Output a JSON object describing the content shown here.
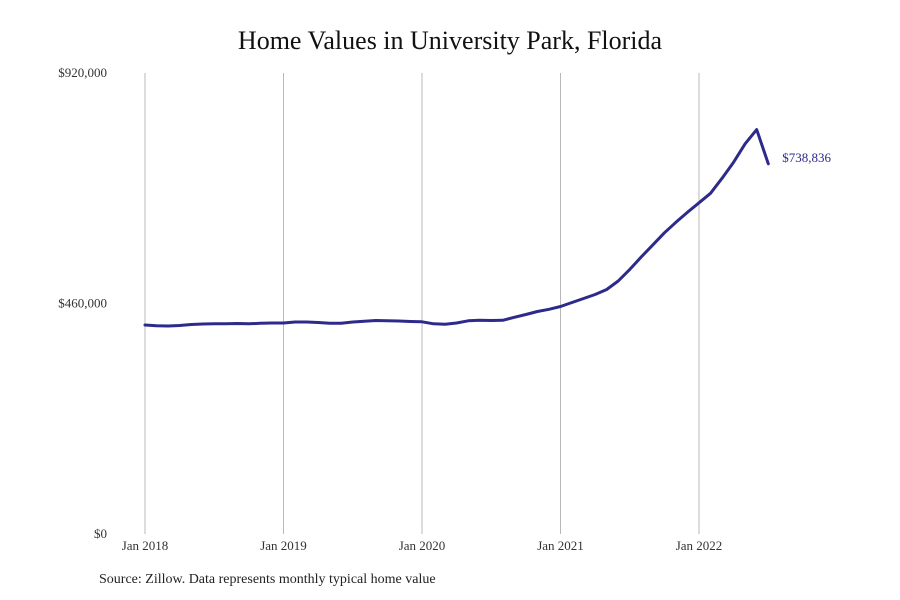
{
  "chart_data": {
    "type": "line",
    "title": "Home Values in University Park, Florida",
    "source_note": "Source: Zillow. Data represents monthly typical home value",
    "ylim": [
      0,
      920000
    ],
    "y_ticks": [
      {
        "value": 0,
        "label": "$0"
      },
      {
        "value": 460000,
        "label": "$460,000"
      },
      {
        "value": 920000,
        "label": "$920,000"
      }
    ],
    "x_ticks": [
      {
        "value": "2018-01",
        "label": "Jan 2018"
      },
      {
        "value": "2019-01",
        "label": "Jan 2019"
      },
      {
        "value": "2020-01",
        "label": "Jan 2020"
      },
      {
        "value": "2021-01",
        "label": "Jan 2021"
      },
      {
        "value": "2022-01",
        "label": "Jan 2022"
      }
    ],
    "grid": "vertical lines at year ticks",
    "line_color": "#2e2a8c",
    "end_label": "$738,836",
    "series": [
      {
        "x": [
          "2018-01",
          "2018-02",
          "2018-03",
          "2018-04",
          "2018-05",
          "2018-06",
          "2018-07",
          "2018-08",
          "2018-09",
          "2018-10",
          "2018-11",
          "2018-12",
          "2019-01",
          "2019-02",
          "2019-03",
          "2019-04",
          "2019-05",
          "2019-06",
          "2019-07",
          "2019-08",
          "2019-09",
          "2019-10",
          "2019-11",
          "2019-12",
          "2020-01",
          "2020-02",
          "2020-03",
          "2020-04",
          "2020-05",
          "2020-06",
          "2020-07",
          "2020-08",
          "2020-09",
          "2020-10",
          "2020-11",
          "2020-12",
          "2021-01",
          "2021-02",
          "2021-03",
          "2021-04",
          "2021-05",
          "2021-06",
          "2021-07",
          "2021-08",
          "2021-09",
          "2021-10",
          "2021-11",
          "2021-12",
          "2022-01",
          "2022-02",
          "2022-03",
          "2022-04",
          "2022-05",
          "2022-06",
          "2022-07"
        ],
        "values": [
          417000,
          415500,
          415000,
          416000,
          418000,
          419000,
          419500,
          419500,
          420000,
          419500,
          420500,
          421000,
          421000,
          423000,
          423000,
          422000,
          420500,
          420500,
          423000,
          424500,
          426000,
          425500,
          425000,
          424000,
          423500,
          419500,
          418500,
          421000,
          425500,
          426500,
          426000,
          426500,
          432500,
          438000,
          444000,
          448500,
          454000,
          462000,
          470000,
          478000,
          488000,
          505000,
          528000,
          553000,
          577000,
          601000,
          622000,
          642000,
          661000,
          680000,
          710000,
          742000,
          779000,
          807000,
          732000
        ]
      }
    ]
  }
}
